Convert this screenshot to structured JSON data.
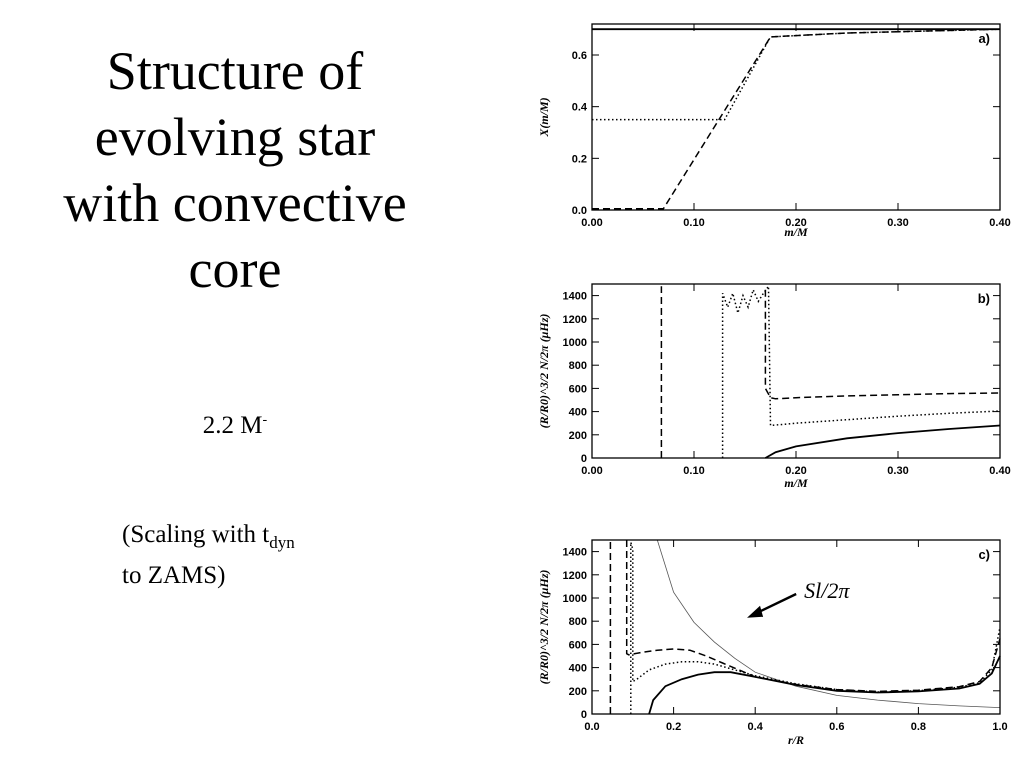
{
  "slide": {
    "title_lines": [
      "Structure of",
      "evolving star",
      "with convective",
      "core"
    ],
    "mass_text": "2.2 M",
    "mass_suffix": "-",
    "scaling_line1": "(Scaling with t",
    "scaling_sub": "dyn",
    "scaling_line2": "to ZAMS)"
  },
  "chart_data": [
    {
      "type": "line",
      "panel_label": "a)",
      "xlabel": "m/M",
      "ylabel": "X(m/M)",
      "xlim": [
        0,
        0.4
      ],
      "ylim": [
        0,
        0.72
      ],
      "xticks": [
        "0.00",
        "0.10",
        "0.20",
        "0.30",
        "0.40"
      ],
      "xtick_values": [
        0,
        0.1,
        0.2,
        0.3,
        0.4
      ],
      "yticks": [
        "0.0",
        "0.2",
        "0.4",
        "0.6"
      ],
      "ytick_values": [
        0,
        0.2,
        0.4,
        0.6
      ],
      "series": [
        {
          "style": "solid",
          "x": [
            0,
            0.4
          ],
          "y": [
            0.7,
            0.7
          ]
        },
        {
          "style": "dotted",
          "x": [
            0,
            0.13,
            0.175,
            0.25,
            0.4
          ],
          "y": [
            0.35,
            0.35,
            0.67,
            0.685,
            0.7
          ]
        },
        {
          "style": "dashed",
          "x": [
            0,
            0.07,
            0.175,
            0.25,
            0.4
          ],
          "y": [
            0.005,
            0.005,
            0.67,
            0.685,
            0.7
          ]
        }
      ]
    },
    {
      "type": "line",
      "panel_label": "b)",
      "xlabel": "m/M",
      "ylabel": "(R/R0)^3/2 N/2π (μHz)",
      "xlim": [
        0,
        0.4
      ],
      "ylim": [
        0,
        1500
      ],
      "xticks": [
        "0.00",
        "0.10",
        "0.20",
        "0.30",
        "0.40"
      ],
      "xtick_values": [
        0,
        0.1,
        0.2,
        0.3,
        0.4
      ],
      "yticks": [
        "0",
        "200",
        "400",
        "600",
        "800",
        "1000",
        "1200",
        "1400"
      ],
      "ytick_values": [
        0,
        200,
        400,
        600,
        800,
        1000,
        1200,
        1400
      ],
      "series": [
        {
          "style": "solid",
          "x": [
            0.17,
            0.18,
            0.2,
            0.25,
            0.3,
            0.35,
            0.4
          ],
          "y": [
            0,
            50,
            100,
            170,
            215,
            250,
            280
          ]
        },
        {
          "style": "dotted",
          "x": [
            0.128,
            0.128,
            0.133,
            0.138,
            0.143,
            0.148,
            0.153,
            0.158,
            0.163,
            0.168,
            0.173,
            0.175,
            0.2,
            0.25,
            0.3,
            0.35,
            0.4
          ],
          "y": [
            0,
            1420,
            1300,
            1420,
            1250,
            1400,
            1300,
            1450,
            1350,
            1420,
            1480,
            280,
            300,
            330,
            360,
            385,
            405
          ]
        },
        {
          "style": "dashed",
          "x": [
            0.068,
            0.068
          ],
          "y": [
            0,
            1480
          ]
        },
        {
          "style": "dashed",
          "x": [
            0.17,
            0.17,
            0.175,
            0.18,
            0.2,
            0.25,
            0.3,
            0.35,
            0.4
          ],
          "y": [
            1450,
            600,
            520,
            510,
            520,
            535,
            545,
            555,
            560
          ]
        }
      ]
    },
    {
      "type": "line",
      "panel_label": "c)",
      "xlabel": "r/R",
      "ylabel": "(R/R0)^3/2 N/2π (μHz)",
      "xlim": [
        0,
        1
      ],
      "ylim": [
        0,
        1500
      ],
      "xticks": [
        "0.0",
        "0.2",
        "0.4",
        "0.6",
        "0.8",
        "1.0"
      ],
      "xtick_values": [
        0,
        0.2,
        0.4,
        0.6,
        0.8,
        1.0
      ],
      "yticks": [
        "0",
        "200",
        "400",
        "600",
        "800",
        "1000",
        "1200",
        "1400"
      ],
      "ytick_values": [
        0,
        200,
        400,
        600,
        800,
        1000,
        1200,
        1400
      ],
      "annotation": {
        "text": "Sl/2π",
        "x": 0.52,
        "y": 1000
      },
      "series": [
        {
          "style": "thin",
          "x": [
            0.16,
            0.2,
            0.25,
            0.3,
            0.35,
            0.4,
            0.5,
            0.6,
            0.7,
            0.8,
            0.9,
            1.0
          ],
          "y": [
            1500,
            1050,
            790,
            620,
            480,
            360,
            240,
            160,
            120,
            90,
            70,
            55
          ]
        },
        {
          "style": "solid",
          "x": [
            0.14,
            0.15,
            0.18,
            0.22,
            0.26,
            0.3,
            0.34,
            0.4,
            0.5,
            0.6,
            0.7,
            0.8,
            0.9,
            0.95,
            0.98,
            1.0
          ],
          "y": [
            0,
            120,
            240,
            300,
            340,
            360,
            360,
            320,
            250,
            200,
            185,
            195,
            220,
            260,
            350,
            500
          ]
        },
        {
          "style": "dotted",
          "x": [
            0.095,
            0.095,
            0.1,
            0.1,
            0.11,
            0.14,
            0.18,
            0.22,
            0.26,
            0.3,
            0.35,
            0.4,
            0.5,
            0.6,
            0.7,
            0.8,
            0.9,
            0.95,
            0.98,
            1.0
          ],
          "y": [
            0,
            1480,
            1420,
            280,
            300,
            380,
            430,
            450,
            450,
            430,
            380,
            330,
            260,
            210,
            190,
            200,
            230,
            270,
            380,
            750
          ]
        },
        {
          "style": "dashed",
          "x": [
            0.045,
            0.045
          ],
          "y": [
            0,
            1500
          ]
        },
        {
          "style": "dashed",
          "x": [
            0.085,
            0.085,
            0.09,
            0.12,
            0.16,
            0.2,
            0.24,
            0.28,
            0.32,
            0.36,
            0.4,
            0.5,
            0.6,
            0.7,
            0.8,
            0.9,
            0.95,
            0.98,
            1.0
          ],
          "y": [
            1500,
            520,
            510,
            530,
            550,
            560,
            550,
            500,
            440,
            380,
            320,
            255,
            210,
            195,
            205,
            235,
            280,
            400,
            650
          ]
        }
      ]
    }
  ]
}
